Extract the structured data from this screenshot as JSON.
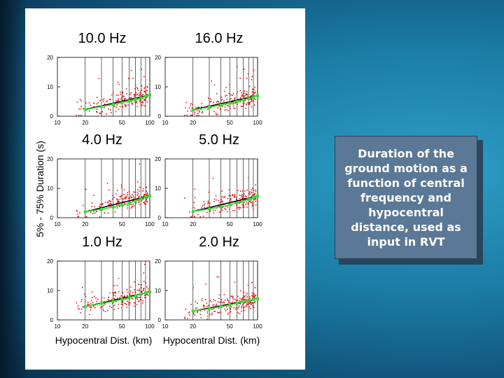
{
  "slide": {
    "caption": "Duration of the ground motion as a function of central frequency and hypocentral distance, used as input in RVT"
  },
  "colors": {
    "background_center": "#2d9fc6",
    "background_edge": "#0a2f4c",
    "callout_fill": "#5b7896",
    "scatter_points": "#e0191e",
    "model_line": "#33dd33",
    "trend_line": "#000000",
    "grid": "#000000"
  },
  "chart_data": {
    "type": "scatter",
    "ylabel": "5% - 75% Duration (s)",
    "xlabel": "Hypocentral Dist. (km)",
    "x_scale": "log",
    "xlim": [
      10,
      100
    ],
    "ylim": [
      0,
      20
    ],
    "x_ticks": [
      "10",
      "20",
      "50",
      "100"
    ],
    "y_ticks": [
      "0",
      "10",
      "20"
    ],
    "grid": "vertical lines at 20, 30, 40, 50, 60, 70, 80, 90, 100 km",
    "panels": [
      {
        "title": "10.0 Hz",
        "x_axis_label": "",
        "trend_x": [
          20,
          100
        ],
        "trend_y": [
          2.3,
          7.2
        ],
        "green_x": [
          20,
          30,
          40,
          50,
          60,
          70,
          80,
          90,
          100
        ],
        "green_y": [
          2.2,
          3.3,
          4.0,
          4.6,
          5.2,
          5.7,
          6.2,
          6.8,
          7.2
        ]
      },
      {
        "title": "16.0 Hz",
        "x_axis_label": "",
        "trend_x": [
          20,
          100
        ],
        "trend_y": [
          2.2,
          7.0
        ],
        "green_x": [
          20,
          30,
          40,
          50,
          60,
          70,
          80,
          90,
          100
        ],
        "green_y": [
          2.1,
          3.1,
          3.8,
          4.4,
          5.0,
          5.5,
          6.0,
          6.5,
          7.0
        ]
      },
      {
        "title": "4.0 Hz",
        "x_axis_label": "",
        "trend_x": [
          20,
          100
        ],
        "trend_y": [
          2.0,
          7.5
        ],
        "green_x": [
          20,
          30,
          40,
          50,
          60,
          70,
          80,
          90,
          100
        ],
        "green_y": [
          2.0,
          2.9,
          3.6,
          4.3,
          5.0,
          5.7,
          6.4,
          7.0,
          7.5
        ]
      },
      {
        "title": "5.0 Hz",
        "x_axis_label": "",
        "trend_x": [
          20,
          100
        ],
        "trend_y": [
          2.1,
          7.4
        ],
        "green_x": [
          20,
          30,
          40,
          50,
          60,
          70,
          80,
          90,
          100
        ],
        "green_y": [
          2.1,
          3.0,
          3.7,
          4.4,
          5.0,
          5.6,
          6.3,
          6.9,
          7.4
        ]
      },
      {
        "title": "1.0 Hz",
        "x_axis_label": "Hypocentral Dist. (km)",
        "trend_x": [
          20,
          100
        ],
        "trend_y": [
          4.5,
          9.5
        ],
        "green_x": [
          20,
          30,
          40,
          50,
          60,
          70,
          80,
          90,
          100
        ],
        "green_y": [
          4.5,
          5.6,
          6.3,
          7.0,
          7.6,
          8.2,
          8.8,
          9.2,
          9.5
        ]
      },
      {
        "title": "2.0 Hz",
        "x_axis_label": "Hypocentral Dist. (km)",
        "trend_x": [
          20,
          100
        ],
        "trend_y": [
          3.0,
          7.2
        ],
        "green_x": [
          20,
          30,
          40,
          50,
          60,
          70,
          80,
          90,
          100
        ],
        "green_y": [
          3.0,
          3.8,
          4.5,
          5.1,
          5.7,
          6.2,
          6.6,
          7.0,
          7.2
        ]
      }
    ]
  }
}
